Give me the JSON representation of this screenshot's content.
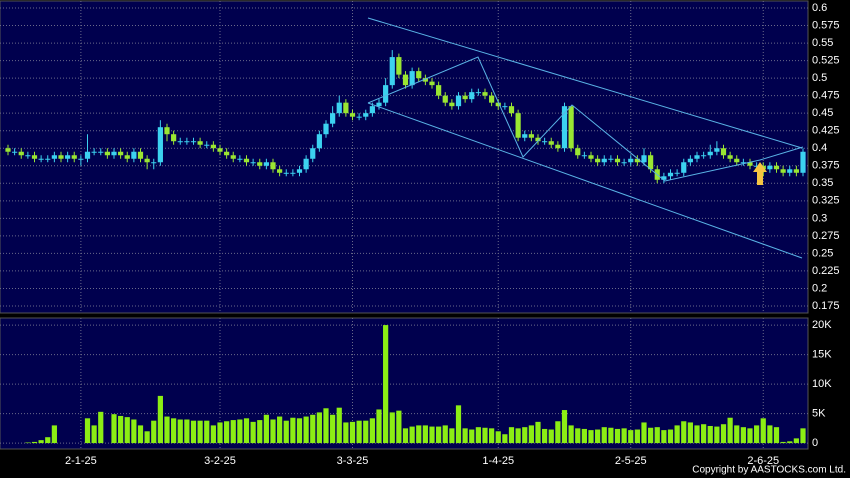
{
  "copyright": "Copyright by AASTOCKS.com Ltd.",
  "chart_data": [
    {
      "type": "candlestick",
      "up_color": "#3cd2f0",
      "down_color": "#9ae632",
      "grid": true,
      "ylim": [
        0.165,
        0.61
      ],
      "yticks": [
        0.6,
        0.575,
        0.55,
        0.525,
        0.5,
        0.475,
        0.45,
        0.425,
        0.4,
        0.375,
        0.35,
        0.325,
        0.3,
        0.275,
        0.25,
        0.225,
        0.2,
        0.175
      ],
      "open": [
        0.4,
        0.395,
        0.395,
        0.39,
        0.39,
        0.385,
        0.385,
        0.385,
        0.39,
        0.385,
        0.39,
        0.385,
        0.385,
        0.395,
        0.395,
        0.395,
        0.39,
        0.395,
        0.39,
        0.385,
        0.395,
        0.385,
        0.38,
        0.38,
        0.43,
        0.42,
        0.41,
        0.41,
        0.41,
        0.41,
        0.405,
        0.405,
        0.4,
        0.395,
        0.39,
        0.385,
        0.385,
        0.38,
        0.38,
        0.375,
        0.38,
        0.37,
        0.365,
        0.365,
        0.365,
        0.37,
        0.385,
        0.4,
        0.42,
        0.435,
        0.45,
        0.465,
        0.45,
        0.445,
        0.445,
        0.45,
        0.46,
        0.465,
        0.49,
        0.53,
        0.505,
        0.49,
        0.51,
        0.5,
        0.495,
        0.49,
        0.475,
        0.465,
        0.46,
        0.475,
        0.47,
        0.48,
        0.48,
        0.475,
        0.465,
        0.46,
        0.46,
        0.45,
        0.415,
        0.42,
        0.415,
        0.41,
        0.41,
        0.405,
        0.4,
        0.46,
        0.4,
        0.39,
        0.39,
        0.385,
        0.38,
        0.385,
        0.385,
        0.38,
        0.38,
        0.385,
        0.38,
        0.39,
        0.37,
        0.355,
        0.36,
        0.365,
        0.365,
        0.38,
        0.385,
        0.39,
        0.39,
        0.395,
        0.4,
        0.39,
        0.385,
        0.38,
        0.38,
        0.375,
        0.375,
        0.37,
        0.375,
        0.37,
        0.365,
        0.37,
        0.365
      ],
      "high": [
        0.405,
        0.4,
        0.4,
        0.395,
        0.395,
        0.39,
        0.39,
        0.395,
        0.395,
        0.395,
        0.395,
        0.39,
        0.42,
        0.4,
        0.4,
        0.4,
        0.4,
        0.4,
        0.395,
        0.4,
        0.4,
        0.39,
        0.385,
        0.44,
        0.435,
        0.425,
        0.415,
        0.415,
        0.415,
        0.415,
        0.41,
        0.41,
        0.405,
        0.4,
        0.395,
        0.39,
        0.39,
        0.385,
        0.385,
        0.385,
        0.385,
        0.375,
        0.37,
        0.37,
        0.375,
        0.39,
        0.405,
        0.425,
        0.44,
        0.46,
        0.475,
        0.47,
        0.455,
        0.45,
        0.455,
        0.465,
        0.47,
        0.5,
        0.54,
        0.535,
        0.51,
        0.515,
        0.515,
        0.505,
        0.5,
        0.495,
        0.48,
        0.47,
        0.48,
        0.48,
        0.485,
        0.485,
        0.485,
        0.48,
        0.47,
        0.465,
        0.465,
        0.455,
        0.425,
        0.425,
        0.42,
        0.415,
        0.415,
        0.41,
        0.465,
        0.46,
        0.405,
        0.395,
        0.395,
        0.39,
        0.39,
        0.39,
        0.39,
        0.385,
        0.39,
        0.39,
        0.4,
        0.395,
        0.375,
        0.365,
        0.37,
        0.37,
        0.385,
        0.39,
        0.395,
        0.395,
        0.405,
        0.41,
        0.405,
        0.395,
        0.39,
        0.385,
        0.385,
        0.38,
        0.38,
        0.38,
        0.38,
        0.375,
        0.375,
        0.375,
        0.4
      ],
      "low": [
        0.39,
        0.39,
        0.385,
        0.385,
        0.38,
        0.38,
        0.38,
        0.38,
        0.38,
        0.38,
        0.38,
        0.375,
        0.38,
        0.39,
        0.39,
        0.385,
        0.385,
        0.385,
        0.38,
        0.38,
        0.38,
        0.37,
        0.37,
        0.375,
        0.41,
        0.405,
        0.405,
        0.405,
        0.405,
        0.4,
        0.4,
        0.395,
        0.39,
        0.385,
        0.38,
        0.38,
        0.375,
        0.375,
        0.37,
        0.37,
        0.365,
        0.36,
        0.36,
        0.36,
        0.36,
        0.365,
        0.38,
        0.395,
        0.415,
        0.43,
        0.445,
        0.445,
        0.44,
        0.44,
        0.44,
        0.445,
        0.455,
        0.46,
        0.485,
        0.5,
        0.485,
        0.485,
        0.495,
        0.49,
        0.485,
        0.47,
        0.46,
        0.455,
        0.455,
        0.465,
        0.465,
        0.475,
        0.47,
        0.46,
        0.455,
        0.455,
        0.445,
        0.41,
        0.41,
        0.41,
        0.405,
        0.405,
        0.4,
        0.395,
        0.395,
        0.395,
        0.385,
        0.385,
        0.38,
        0.375,
        0.375,
        0.38,
        0.375,
        0.375,
        0.375,
        0.375,
        0.375,
        0.365,
        0.35,
        0.35,
        0.355,
        0.36,
        0.36,
        0.375,
        0.38,
        0.385,
        0.385,
        0.39,
        0.385,
        0.38,
        0.375,
        0.375,
        0.37,
        0.37,
        0.36,
        0.365,
        0.365,
        0.36,
        0.36,
        0.36,
        0.36
      ],
      "close": [
        0.395,
        0.395,
        0.39,
        0.39,
        0.385,
        0.385,
        0.385,
        0.39,
        0.385,
        0.39,
        0.385,
        0.385,
        0.395,
        0.395,
        0.395,
        0.39,
        0.395,
        0.39,
        0.385,
        0.395,
        0.385,
        0.38,
        0.38,
        0.43,
        0.42,
        0.41,
        0.41,
        0.41,
        0.41,
        0.405,
        0.405,
        0.4,
        0.395,
        0.39,
        0.385,
        0.385,
        0.38,
        0.38,
        0.375,
        0.38,
        0.37,
        0.365,
        0.365,
        0.365,
        0.37,
        0.385,
        0.4,
        0.42,
        0.435,
        0.45,
        0.465,
        0.45,
        0.445,
        0.445,
        0.45,
        0.46,
        0.465,
        0.49,
        0.53,
        0.505,
        0.49,
        0.51,
        0.5,
        0.495,
        0.49,
        0.475,
        0.465,
        0.46,
        0.475,
        0.47,
        0.48,
        0.48,
        0.475,
        0.465,
        0.46,
        0.46,
        0.45,
        0.415,
        0.42,
        0.415,
        0.41,
        0.41,
        0.405,
        0.4,
        0.46,
        0.4,
        0.39,
        0.39,
        0.385,
        0.38,
        0.385,
        0.385,
        0.38,
        0.38,
        0.385,
        0.38,
        0.39,
        0.37,
        0.355,
        0.36,
        0.365,
        0.365,
        0.38,
        0.385,
        0.39,
        0.39,
        0.395,
        0.4,
        0.39,
        0.385,
        0.38,
        0.38,
        0.375,
        0.375,
        0.37,
        0.375,
        0.37,
        0.365,
        0.37,
        0.365,
        0.395
      ]
    },
    {
      "type": "bar",
      "color": "#8cee14",
      "grid": true,
      "ylim": [
        -1000,
        21200
      ],
      "yticks": [
        0,
        {
          "value": 5000,
          "label": "5K"
        },
        {
          "value": 10000,
          "label": "10K"
        },
        {
          "value": 15000,
          "label": "15K"
        },
        {
          "value": 20000,
          "label": "20K"
        }
      ],
      "categories": [
        null,
        null,
        null,
        null,
        null,
        null,
        null,
        null,
        null,
        null,
        null,
        "2-1-25",
        null,
        null,
        null,
        null,
        null,
        null,
        null,
        null,
        null,
        null,
        null,
        null,
        null,
        null,
        null,
        null,
        null,
        null,
        null,
        null,
        "3-2-25",
        null,
        null,
        null,
        null,
        null,
        null,
        null,
        null,
        null,
        null,
        null,
        null,
        null,
        null,
        null,
        null,
        null,
        null,
        null,
        "3-3-25",
        null,
        null,
        null,
        null,
        null,
        null,
        null,
        null,
        null,
        null,
        null,
        null,
        null,
        null,
        null,
        null,
        null,
        null,
        null,
        null,
        null,
        "1-4-25",
        null,
        null,
        null,
        null,
        null,
        null,
        null,
        null,
        null,
        null,
        null,
        null,
        null,
        null,
        null,
        null,
        null,
        null,
        null,
        "2-5-25",
        null,
        null,
        null,
        null,
        null,
        null,
        null,
        null,
        null,
        null,
        null,
        null,
        null,
        null,
        null,
        null,
        null,
        null,
        null,
        "2-6-25",
        null,
        null,
        null,
        null,
        null,
        null
      ],
      "values": [
        0,
        0,
        0,
        100,
        200,
        500,
        1000,
        3000,
        0,
        0,
        0,
        0,
        4200,
        3000,
        5300,
        0,
        4900,
        4600,
        4400,
        4000,
        3000,
        2000,
        3800,
        8000,
        4500,
        4200,
        4000,
        4000,
        3800,
        3800,
        3800,
        3000,
        3500,
        3700,
        3900,
        4000,
        4200,
        3600,
        3900,
        4800,
        4000,
        4500,
        3800,
        4300,
        4200,
        4500,
        4800,
        5200,
        5900,
        4800,
        6000,
        3500,
        3600,
        3800,
        3800,
        4200,
        5700,
        20000,
        5200,
        5500,
        2500,
        2800,
        3000,
        3000,
        2800,
        2800,
        3000,
        2500,
        6400,
        2500,
        2300,
        2700,
        2600,
        2500,
        2000,
        1500,
        2700,
        2500,
        2700,
        3000,
        3600,
        2400,
        2300,
        3700,
        5600,
        3000,
        2500,
        2400,
        2200,
        2300,
        2700,
        2600,
        2400,
        2500,
        2200,
        2300,
        3500,
        2600,
        2700,
        2200,
        2300,
        3000,
        3700,
        3500,
        3000,
        3200,
        2900,
        2800,
        3200,
        4300,
        3000,
        2700,
        2500,
        3000,
        4200,
        3000,
        2700,
        200,
        300,
        800,
        2500
      ]
    }
  ]
}
